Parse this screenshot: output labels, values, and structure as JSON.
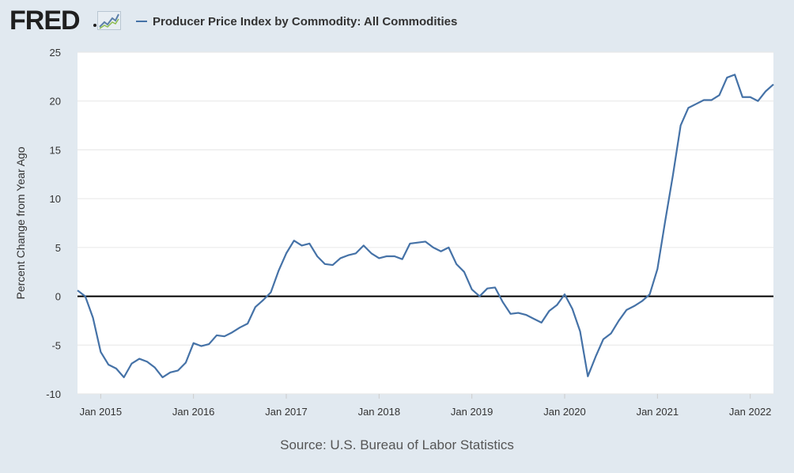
{
  "header": {
    "logo_text": "FRED",
    "logo_graph_icon": "fred-line-chart-icon"
  },
  "source": "Source: U.S. Bureau of Labor Statistics",
  "colors": {
    "series": "#4572a7",
    "background": "#e1e9f0",
    "plot_background": "#ffffff",
    "zero_line": "#000000"
  },
  "chart_data": {
    "type": "line",
    "title": "",
    "xlabel": "",
    "ylabel": "Percent Change from Year Ago",
    "ylim": [
      -10,
      25
    ],
    "yticks": [
      -10,
      -5,
      0,
      5,
      10,
      15,
      20,
      25
    ],
    "xlim": [
      "2014-10",
      "2022-04"
    ],
    "xticks": [
      {
        "date": "2015-01",
        "label": "Jan 2015"
      },
      {
        "date": "2016-01",
        "label": "Jan 2016"
      },
      {
        "date": "2017-01",
        "label": "Jan 2017"
      },
      {
        "date": "2018-01",
        "label": "Jan 2018"
      },
      {
        "date": "2019-01",
        "label": "Jan 2019"
      },
      {
        "date": "2020-01",
        "label": "Jan 2020"
      },
      {
        "date": "2021-01",
        "label": "Jan 2021"
      },
      {
        "date": "2022-01",
        "label": "Jan 2022"
      }
    ],
    "grid": "horizontal",
    "reference_line": 0,
    "legend_position": "top-left",
    "series": [
      {
        "name": "Producer Price Index by Commodity: All Commodities",
        "x": [
          "2014-10",
          "2014-11",
          "2014-12",
          "2015-01",
          "2015-02",
          "2015-03",
          "2015-04",
          "2015-05",
          "2015-06",
          "2015-07",
          "2015-08",
          "2015-09",
          "2015-10",
          "2015-11",
          "2015-12",
          "2016-01",
          "2016-02",
          "2016-03",
          "2016-04",
          "2016-05",
          "2016-06",
          "2016-07",
          "2016-08",
          "2016-09",
          "2016-10",
          "2016-11",
          "2016-12",
          "2017-01",
          "2017-02",
          "2017-03",
          "2017-04",
          "2017-05",
          "2017-06",
          "2017-07",
          "2017-08",
          "2017-09",
          "2017-10",
          "2017-11",
          "2017-12",
          "2018-01",
          "2018-02",
          "2018-03",
          "2018-04",
          "2018-05",
          "2018-06",
          "2018-07",
          "2018-08",
          "2018-09",
          "2018-10",
          "2018-11",
          "2018-12",
          "2019-01",
          "2019-02",
          "2019-03",
          "2019-04",
          "2019-05",
          "2019-06",
          "2019-07",
          "2019-08",
          "2019-09",
          "2019-10",
          "2019-11",
          "2019-12",
          "2020-01",
          "2020-02",
          "2020-03",
          "2020-04",
          "2020-05",
          "2020-06",
          "2020-07",
          "2020-08",
          "2020-09",
          "2020-10",
          "2020-11",
          "2020-12",
          "2021-01",
          "2021-02",
          "2021-03",
          "2021-04",
          "2021-05",
          "2021-06",
          "2021-07",
          "2021-08",
          "2021-09",
          "2021-10",
          "2021-11",
          "2021-12",
          "2022-01",
          "2022-02",
          "2022-03",
          "2022-04"
        ],
        "values": [
          0.6,
          0.0,
          -2.2,
          -5.7,
          -7.0,
          -7.4,
          -8.3,
          -6.9,
          -6.4,
          -6.7,
          -7.3,
          -8.3,
          -7.8,
          -7.6,
          -6.8,
          -4.8,
          -5.1,
          -4.9,
          -4.0,
          -4.1,
          -3.7,
          -3.2,
          -2.8,
          -1.1,
          -0.4,
          0.4,
          2.6,
          4.4,
          5.7,
          5.2,
          5.4,
          4.1,
          3.3,
          3.2,
          3.9,
          4.2,
          4.4,
          5.2,
          4.4,
          3.9,
          4.1,
          4.1,
          3.8,
          5.4,
          5.5,
          5.6,
          5.0,
          4.6,
          5.0,
          3.3,
          2.5,
          0.7,
          0.0,
          0.8,
          0.9,
          -0.6,
          -1.8,
          -1.7,
          -1.9,
          -2.3,
          -2.7,
          -1.5,
          -0.9,
          0.2,
          -1.3,
          -3.6,
          -8.2,
          -6.2,
          -4.4,
          -3.8,
          -2.5,
          -1.4,
          -1.0,
          -0.5,
          0.2,
          2.8,
          7.7,
          12.4,
          17.5,
          19.3,
          19.7,
          20.1,
          20.1,
          20.6,
          22.4,
          22.7,
          20.4,
          20.4,
          20.0,
          21.0,
          21.7
        ]
      }
    ]
  }
}
